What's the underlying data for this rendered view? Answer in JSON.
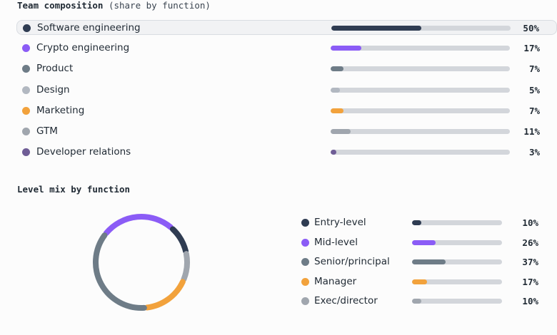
{
  "chart_data": [
    {
      "type": "bar",
      "title": "Team composition",
      "subtitle": "(share by function)",
      "highlighted_category": "Software engineering",
      "categories": [
        "Software engineering",
        "Crypto engineering",
        "Product",
        "Design",
        "Marketing",
        "GTM",
        "Developer relations"
      ],
      "values": [
        50,
        17,
        7,
        5,
        7,
        11,
        3
      ],
      "value_labels": [
        "50%",
        "17%",
        "7%",
        "5%",
        "7%",
        "11%",
        "3%"
      ],
      "colors": [
        "#2f3c52",
        "#8b5cf6",
        "#6e7c87",
        "#b2b8c1",
        "#f2a23c",
        "#a0a6ae",
        "#6f5d96"
      ],
      "ylim": [
        0,
        100
      ]
    },
    {
      "type": "pie",
      "title": "Level mix by function",
      "categories": [
        "Entry-level",
        "Mid-level",
        "Senior/principal",
        "Manager",
        "Exec/director"
      ],
      "values": [
        10,
        26,
        37,
        17,
        10
      ],
      "value_labels": [
        "10%",
        "26%",
        "37%",
        "17%",
        "10%"
      ],
      "colors": [
        "#2f3c52",
        "#8b5cf6",
        "#6e7c87",
        "#f2a23c",
        "#a0a6ae"
      ],
      "ylim": [
        0,
        100
      ]
    }
  ]
}
